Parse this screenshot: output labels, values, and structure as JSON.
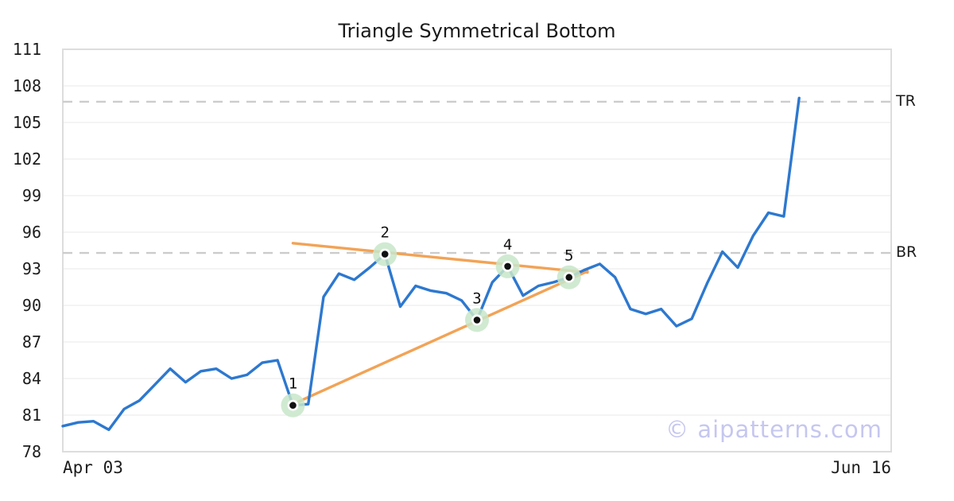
{
  "watermark": "© aipatterns.com",
  "colors": {
    "price_line": "#2d78cf",
    "trendline": "#f2a356",
    "level_dash": "#cccccc",
    "gridline": "#eeeeee",
    "plot_border": "#dddddd",
    "marker_halo": "#c8e6c9",
    "marker_dot": "#111111",
    "watermark": "#c6c7ef",
    "text": "#1c1c1c"
  },
  "chart_data": {
    "type": "line",
    "title": "Triangle Symmetrical Bottom",
    "x_axis": {
      "start_label": "Apr 03",
      "end_label": "Jun 16",
      "total_slots": 55
    },
    "y_axis": {
      "min": 78,
      "max": 111,
      "ticks": [
        78,
        81,
        84,
        87,
        90,
        93,
        96,
        99,
        102,
        105,
        108,
        111
      ]
    },
    "series": [
      {
        "name": "price",
        "values": [
          80.1,
          80.4,
          80.5,
          79.8,
          81.5,
          82.2,
          83.5,
          84.8,
          83.7,
          84.6,
          84.8,
          84.0,
          84.3,
          85.3,
          85.5,
          81.8,
          81.9,
          90.7,
          92.6,
          92.1,
          93.1,
          94.2,
          89.9,
          91.6,
          91.2,
          91.0,
          90.4,
          88.8,
          91.9,
          93.2,
          90.8,
          91.6,
          91.9,
          92.3,
          92.9,
          93.4,
          92.3,
          89.7,
          89.3,
          89.7,
          88.3,
          88.9,
          91.8,
          94.4,
          93.1,
          95.7,
          97.6,
          97.3,
          107.0
        ]
      }
    ],
    "pattern_points": [
      {
        "label": "1",
        "index": 15,
        "value": 81.8
      },
      {
        "label": "2",
        "index": 21,
        "value": 94.2
      },
      {
        "label": "3",
        "index": 27,
        "value": 88.8
      },
      {
        "label": "4",
        "index": 29,
        "value": 93.2
      },
      {
        "label": "5",
        "index": 33,
        "value": 92.3
      }
    ],
    "trendlines": [
      {
        "name": "resistance",
        "from_index": 15,
        "from_value": 95.1,
        "to_index": 34.2,
        "to_value": 92.7
      },
      {
        "name": "support",
        "from_index": 15,
        "from_value": 81.9,
        "to_index": 34.2,
        "to_value": 92.8
      }
    ],
    "levels": [
      {
        "label": "TR",
        "value": 106.7
      },
      {
        "label": "BR",
        "value": 94.3
      }
    ],
    "legend_position": "none",
    "grid": "horizontal"
  }
}
